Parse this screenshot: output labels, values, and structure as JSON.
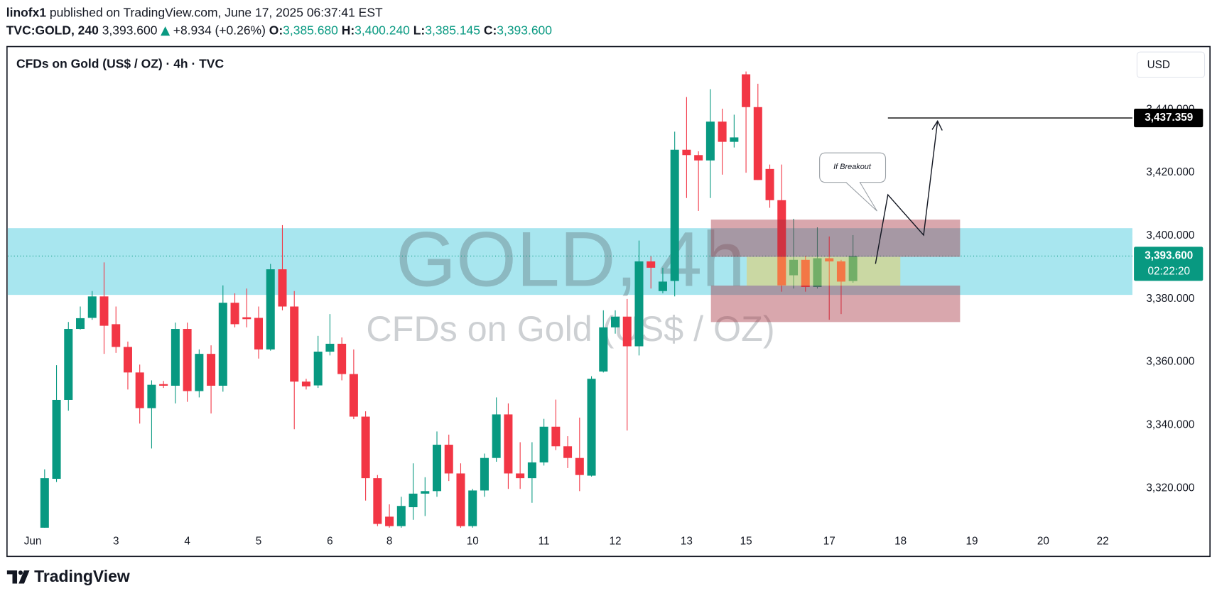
{
  "header": {
    "author": "linofx1",
    "published": "published on TradingView.com, June 17, 2025 06:37:41 EST",
    "symbol": "TVC:GOLD, 240",
    "last": "3,393.600",
    "change": "+8.934 (+0.26%)",
    "ohlc": [
      {
        "key": "O:",
        "value": "3,385.680"
      },
      {
        "key": "H:",
        "value": "3,400.240"
      },
      {
        "key": "L:",
        "value": "3,385.145"
      },
      {
        "key": "C:",
        "value": "3,393.600"
      }
    ]
  },
  "chart_data": {
    "type": "candlestick",
    "title": "CFDs on Gold (US$ / OZ) · 4h · TVC",
    "watermark": "GOLD, 4h",
    "watermark_sub": "CFDs on Gold (US$ / OZ)",
    "currency": "USD",
    "annotation": "If Breakout",
    "up_color": "#089981",
    "down_color": "#f23645",
    "x": [
      0,
      1,
      2,
      3,
      4,
      5,
      6,
      7,
      8,
      9,
      10,
      11,
      12,
      13,
      14,
      15,
      16,
      17,
      18,
      19,
      20,
      21,
      22,
      23,
      24,
      25,
      26,
      27,
      28,
      29,
      30,
      31,
      32,
      33,
      34,
      35,
      36,
      37,
      38,
      39,
      40,
      41,
      42,
      43,
      44,
      45,
      46,
      47,
      48,
      49,
      50,
      51,
      52,
      53,
      54,
      55,
      56,
      57,
      58,
      59,
      60,
      61,
      62,
      63,
      64,
      65,
      66,
      67,
      68
    ],
    "open": [
      3307.5,
      3323,
      3348,
      3370.5,
      3374,
      3380.8,
      3372,
      3364.8,
      3356.7,
      3345.4,
      3353,
      3352.5,
      3370.5,
      3350.8,
      3362.6,
      3352.5,
      3378.8,
      3374.2,
      3374,
      3364,
      3389.4,
      3377.6,
      3353.8,
      3352.6,
      3363.3,
      3365.8,
      3356.2,
      3342.7,
      3323.2,
      3311,
      3308,
      3314,
      3318.3,
      3319.1,
      3333.8,
      3324.7,
      3308,
      3319.3,
      3329.6,
      3343.4,
      3324.7,
      3323.2,
      3328.2,
      3339.5,
      3333.3,
      3329.6,
      3324,
      3357,
      3371,
      3374.4,
      3365,
      3391.9,
      3382.5,
      3385.7,
      3427.3,
      3425.6,
      3423.9,
      3436.2,
      3429.8,
      3451.2,
      3440.8,
      3421.2,
      3411.3,
      3387.5,
      3392.4,
      3383.8,
      3392.9,
      3391.9,
      3385.68
    ],
    "high": [
      3326,
      3359,
      3372.7,
      3377.6,
      3382.5,
      3391.6,
      3377.6,
      3366.5,
      3359.2,
      3354.2,
      3354,
      3372.5,
      3372.5,
      3364,
      3365.3,
      3384.3,
      3381.8,
      3383.3,
      3377.6,
      3391.1,
      3403.4,
      3382.5,
      3354.7,
      3368.3,
      3375.2,
      3367.8,
      3364,
      3344.4,
      3324.2,
      3314.9,
      3317.3,
      3327.9,
      3323.5,
      3338,
      3337,
      3327.9,
      3319.8,
      3331,
      3348.8,
      3346.9,
      3334.6,
      3334.6,
      3342,
      3348.1,
      3336.5,
      3342.4,
      3355.5,
      3376.4,
      3376.4,
      3380,
      3398.5,
      3393.6,
      3389.9,
      3433,
      3444,
      3426.8,
      3446.5,
      3440.3,
      3438.4,
      3452.1,
      3448.2,
      3422.6,
      3422.6,
      3405.4,
      3393.6,
      3402.7,
      3399.8,
      3392.4,
      3400.24
    ],
    "low": [
      3307.5,
      3322,
      3344.6,
      3370.3,
      3373.4,
      3362.6,
      3362.9,
      3351.3,
      3340.5,
      3332.6,
      3351.8,
      3346.9,
      3347.4,
      3348.8,
      3343.7,
      3350.6,
      3371,
      3371,
      3361.1,
      3363.6,
      3376.4,
      3338.7,
      3351.3,
      3351.8,
      3362.1,
      3354.2,
      3341.9,
      3316.1,
      3308,
      3307.5,
      3307.5,
      3310,
      3311.2,
      3317.3,
      3322.3,
      3307.5,
      3307.5,
      3317.3,
      3328.4,
      3319.8,
      3319.8,
      3315.4,
      3327.2,
      3332.1,
      3326.4,
      3319.1,
      3323.7,
      3356.7,
      3369,
      3338.3,
      3362.1,
      3383.3,
      3381.8,
      3380.8,
      3412,
      3407.9,
      3412,
      3419.4,
      3428,
      3420,
      3417.7,
      3408.9,
      3382.3,
      3383.3,
      3382.3,
      3383.3,
      3373.4,
      3375.2,
      3385.145
    ],
    "close": [
      3323.2,
      3348,
      3370.5,
      3373.9,
      3380.8,
      3371.5,
      3364.8,
      3356.7,
      3345.4,
      3352.8,
      3352.5,
      3370.5,
      3350.8,
      3362.6,
      3352.5,
      3378.8,
      3372,
      3373.6,
      3364,
      3389.4,
      3377.6,
      3353.8,
      3352.3,
      3363.3,
      3365.8,
      3356.2,
      3342.7,
      3323.2,
      3308.7,
      3308,
      3314.4,
      3318.3,
      3319.1,
      3333.8,
      3324.7,
      3308,
      3319.3,
      3329.6,
      3343.4,
      3324.7,
      3323.2,
      3328.2,
      3339.5,
      3333.3,
      3329.6,
      3324.2,
      3354.7,
      3371,
      3374.4,
      3365,
      3391.9,
      3389.9,
      3385.5,
      3427.3,
      3425.6,
      3423.9,
      3436.2,
      3429.8,
      3431.2,
      3440.8,
      3417.7,
      3411.3,
      3384.3,
      3392.4,
      3383.8,
      3392.9,
      3391.9,
      3385.5,
      3393.6
    ],
    "xlim": [
      -3.1,
      91.5
    ],
    "xticks": [
      {
        "value": -1,
        "label": "Jun"
      },
      {
        "value": 6,
        "label": "3"
      },
      {
        "value": 12,
        "label": "4"
      },
      {
        "value": 18,
        "label": "5"
      },
      {
        "value": 24,
        "label": "6"
      },
      {
        "value": 29,
        "label": "8"
      },
      {
        "value": 36,
        "label": "10"
      },
      {
        "value": 42,
        "label": "11"
      },
      {
        "value": 48,
        "label": "12"
      },
      {
        "value": 54,
        "label": "13"
      },
      {
        "value": 59,
        "label": "15"
      },
      {
        "value": 66,
        "label": "17"
      },
      {
        "value": 72,
        "label": "18"
      },
      {
        "value": 78,
        "label": "19"
      },
      {
        "value": 84,
        "label": "20"
      },
      {
        "value": 89,
        "label": "22"
      }
    ],
    "ylim": [
      3307.5,
      3459.5
    ],
    "yticks": [
      {
        "value": 3320,
        "label": "3,320.000"
      },
      {
        "value": 3340,
        "label": "3,340.000"
      },
      {
        "value": 3360,
        "label": "3,360.000"
      },
      {
        "value": 3380,
        "label": "3,380.000"
      },
      {
        "value": 3400,
        "label": "3,400.000"
      },
      {
        "value": 3420,
        "label": "3,420.000"
      },
      {
        "value": 3440,
        "label": "3,440.000"
      }
    ],
    "target_line": {
      "value": 3437.359,
      "label": "3,437.359",
      "color": "#000000"
    },
    "last_price": {
      "value": 3393.6,
      "label": "3,393.600",
      "countdown": "02:22:20",
      "color": "#089981"
    }
  }
}
